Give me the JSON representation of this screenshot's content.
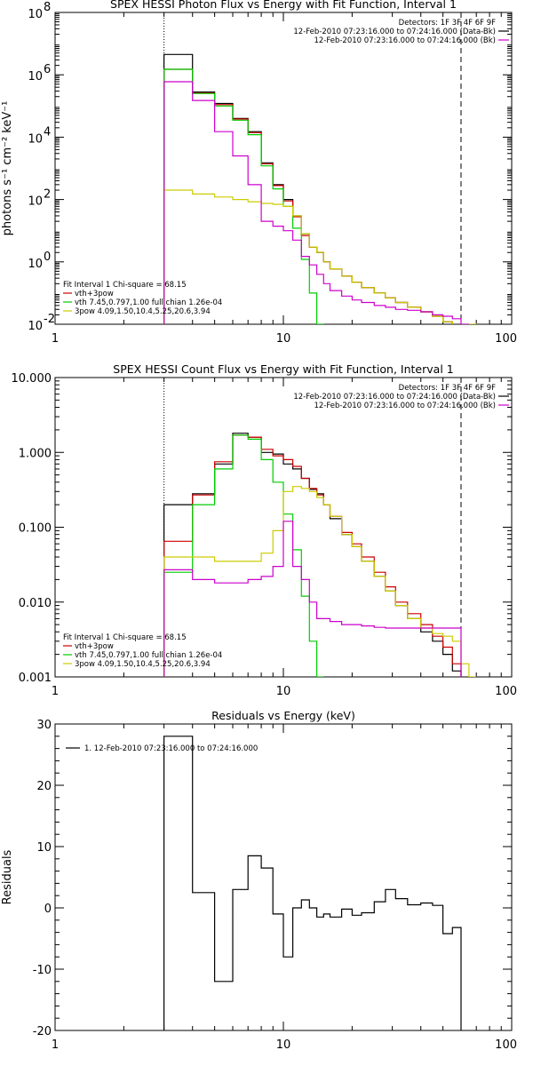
{
  "chart_data": [
    {
      "type": "line",
      "title": "SPEX HESSI Photon Flux vs Energy with Fit Function, Interval 1",
      "xlabel": "",
      "ylabel": "photons s⁻¹ cm⁻² keV⁻¹",
      "xscale": "log",
      "yscale": "log",
      "xlim": [
        1,
        100
      ],
      "ylim": [
        0.01,
        100000000
      ],
      "xticks": [
        {
          "v": 1,
          "label": "1"
        },
        {
          "v": 10,
          "label": "10"
        },
        {
          "v": 100,
          "label": "100"
        }
      ],
      "yticks": [
        {
          "v": 0.01,
          "label": "10",
          "exp": "-2"
        },
        {
          "v": 1,
          "label": "10",
          "exp": "0"
        },
        {
          "v": 100,
          "label": "10",
          "exp": "2"
        },
        {
          "v": 10000,
          "label": "10",
          "exp": "4"
        },
        {
          "v": 1000000,
          "label": "10",
          "exp": "6"
        },
        {
          "v": 100000000,
          "label": "10",
          "exp": "8"
        }
      ],
      "vlines": [
        {
          "x": 3,
          "style": "dotted"
        },
        {
          "x": 60,
          "style": "dashed"
        }
      ],
      "legend_top": [
        "Detectors: 1F 3F 4F 6F 9F",
        "12-Feb-2010 07:23:16.000 to 07:24:16.000 (Data-Bk)",
        "12-Feb-2010 07:23:16.000 to 07:24:16.000 (Bk)"
      ],
      "legend_top_colors": [
        "",
        "#000000",
        "#cc00cc"
      ],
      "legend_bottom": [
        "Fit Interval 1    Chi-square = 68.15",
        "vth+3pow",
        "vth 7.45,0.797,1.00  full chian 1.26e-04",
        "3pow 4.09,1.50,10.4,5.25,20.6,3.94"
      ],
      "legend_bottom_colors": [
        "",
        "#cc0000",
        "#00cc00",
        "#cccc00"
      ],
      "edges": [
        3,
        4,
        5,
        6,
        7,
        8,
        9,
        10,
        11,
        12,
        13,
        14,
        15,
        16,
        18,
        20,
        22,
        25,
        28,
        31,
        35,
        40,
        45,
        50,
        55,
        60,
        65,
        70
      ],
      "series": [
        {
          "color": "#000000",
          "values": [
            4500000,
            280000,
            120000,
            40000,
            15000,
            1500,
            300,
            100,
            30,
            8,
            3,
            2,
            1,
            0.6,
            0.35,
            0.22,
            0.15,
            0.1,
            0.07,
            0.05,
            0.035,
            0.025,
            0.018,
            0.012,
            0.009,
            0.004,
            null
          ]
        },
        {
          "color": "#cc0000",
          "values": [
            1500000,
            260000,
            110000,
            38000,
            14000,
            1400,
            280,
            90,
            28,
            7,
            3,
            2,
            1,
            0.6,
            0.35,
            0.22,
            0.15,
            0.1,
            0.07,
            0.05,
            0.035,
            0.025,
            0.018,
            0.012,
            0.009,
            0.004,
            null
          ]
        },
        {
          "color": "#00cc00",
          "values": [
            1500000,
            250000,
            100000,
            35000,
            12000,
            1200,
            220,
            60,
            12,
            1.2,
            0.1,
            0.01,
            0.001,
            null,
            null,
            null,
            null,
            null,
            null,
            null,
            null,
            null,
            null,
            null,
            null,
            null,
            null
          ]
        },
        {
          "color": "#cccc00",
          "values": [
            200,
            150,
            120,
            100,
            85,
            75,
            70,
            60,
            30,
            8,
            3,
            2,
            1,
            0.6,
            0.35,
            0.22,
            0.15,
            0.1,
            0.07,
            0.05,
            0.035,
            0.025,
            0.018,
            0.012,
            0.009,
            0.005,
            0.01
          ]
        },
        {
          "color": "#cc00cc",
          "values": [
            600000,
            150000,
            15000,
            2500,
            300,
            20,
            14,
            10,
            5,
            1.5,
            0.8,
            0.4,
            0.2,
            0.12,
            0.08,
            0.06,
            0.05,
            0.04,
            0.035,
            0.03,
            0.028,
            0.025,
            0.02,
            0.018,
            0.015,
            0.01,
            null
          ]
        }
      ]
    },
    {
      "type": "line",
      "title": "SPEX HESSI Count Flux vs Energy with Fit Function, Interval 1",
      "xlabel": "",
      "ylabel": "",
      "xscale": "log",
      "yscale": "log",
      "xlim": [
        1,
        100
      ],
      "ylim": [
        0.001,
        10
      ],
      "xticks": [
        {
          "v": 1,
          "label": "1"
        },
        {
          "v": 10,
          "label": "10"
        },
        {
          "v": 100,
          "label": "100"
        }
      ],
      "yticks": [
        {
          "v": 0.001,
          "label": "0.001"
        },
        {
          "v": 0.01,
          "label": "0.010"
        },
        {
          "v": 0.1,
          "label": "0.100"
        },
        {
          "v": 1,
          "label": "1.000"
        },
        {
          "v": 10,
          "label": "10.000"
        }
      ],
      "vlines": [
        {
          "x": 3,
          "style": "dotted"
        },
        {
          "x": 60,
          "style": "dashed"
        }
      ],
      "legend_top": [
        "Detectors: 1F 3F 4F 6F 9F",
        "12-Feb-2010 07:23:16.000 to 07:24:16.000 (Data-Bk)",
        "12-Feb-2010 07:23:16.000 to 07:24:16.000 (Bk)"
      ],
      "legend_top_colors": [
        "",
        "#000000",
        "#cc00cc"
      ],
      "legend_bottom": [
        "Fit Interval 1    Chi-square = 68.15",
        "vth+3pow",
        "vth 7.45,0.797,1.00  full chian 1.26e-04",
        "3pow 4.09,1.50,10.4,5.25,20.6,3.94"
      ],
      "legend_bottom_colors": [
        "",
        "#cc0000",
        "#00cc00",
        "#cccc00"
      ],
      "edges": [
        3,
        4,
        5,
        6,
        7,
        8,
        9,
        10,
        11,
        12,
        13,
        14,
        15,
        16,
        18,
        20,
        22,
        25,
        28,
        31,
        35,
        40,
        45,
        50,
        55,
        60,
        65,
        70,
        80
      ],
      "series": [
        {
          "color": "#000000",
          "values": [
            0.2,
            0.28,
            0.7,
            1.8,
            1.6,
            1.0,
            0.95,
            0.7,
            0.6,
            0.45,
            0.32,
            0.28,
            0.2,
            0.13,
            0.08,
            0.055,
            0.035,
            0.022,
            0.014,
            0.009,
            0.006,
            0.004,
            0.003,
            0.002,
            0.0012,
            null,
            null,
            null
          ]
        },
        {
          "color": "#cc0000",
          "values": [
            0.065,
            0.27,
            0.75,
            1.7,
            1.6,
            1.1,
            0.9,
            0.8,
            0.65,
            0.45,
            0.33,
            0.27,
            0.2,
            0.14,
            0.085,
            0.06,
            0.04,
            0.025,
            0.016,
            0.01,
            0.007,
            0.005,
            0.0035,
            0.0025,
            0.0015,
            null,
            null,
            null
          ]
        },
        {
          "color": "#00cc00",
          "values": [
            0.025,
            0.2,
            0.6,
            1.7,
            1.5,
            0.8,
            0.4,
            0.15,
            0.05,
            0.012,
            0.003,
            0.001,
            null,
            null,
            null,
            null,
            null,
            null,
            null,
            null,
            null,
            null,
            null,
            null,
            null,
            null,
            null,
            null
          ]
        },
        {
          "color": "#cccc00",
          "values": [
            0.04,
            0.04,
            0.035,
            0.035,
            0.035,
            0.045,
            0.09,
            0.3,
            0.35,
            0.33,
            0.3,
            0.25,
            0.2,
            0.14,
            0.08,
            0.055,
            0.035,
            0.022,
            0.014,
            0.009,
            0.006,
            0.0045,
            0.0038,
            0.0035,
            0.003,
            0.0015,
            0.001,
            null
          ]
        },
        {
          "color": "#cc00cc",
          "values": [
            0.027,
            0.02,
            0.018,
            0.018,
            0.02,
            0.022,
            0.03,
            0.12,
            0.03,
            0.02,
            0.01,
            0.006,
            0.006,
            0.0055,
            0.005,
            0.005,
            0.0048,
            0.0046,
            0.0045,
            0.0045,
            0.0045,
            0.0045,
            0.0045,
            0.0045,
            0.0045,
            null,
            null,
            null
          ]
        }
      ]
    },
    {
      "type": "line",
      "title": "Residuals vs Energy (keV)",
      "xlabel": "",
      "ylabel": "Residuals",
      "xscale": "log",
      "yscale": "linear",
      "xlim": [
        1,
        100
      ],
      "ylim": [
        -20,
        30
      ],
      "xticks": [
        {
          "v": 1,
          "label": "1"
        },
        {
          "v": 10,
          "label": "10"
        },
        {
          "v": 100,
          "label": "100"
        }
      ],
      "yticks": [
        {
          "v": -20,
          "label": "-20"
        },
        {
          "v": -10,
          "label": "-10"
        },
        {
          "v": 0,
          "label": "0"
        },
        {
          "v": 10,
          "label": "10"
        },
        {
          "v": 20,
          "label": "20"
        },
        {
          "v": 30,
          "label": "30"
        }
      ],
      "vlines": [],
      "legend_top": [
        "1. 12-Feb-2010 07:23:16.000 to 07:24:16.000"
      ],
      "legend_top_colors": [
        "#000000"
      ],
      "legend_bottom": [],
      "legend_bottom_colors": [],
      "edges": [
        3,
        4,
        5,
        6,
        7,
        8,
        9,
        10,
        11,
        12,
        13,
        14,
        15,
        16,
        18,
        20,
        22,
        25,
        28,
        31,
        35,
        40,
        45,
        50,
        55,
        60
      ],
      "series": [
        {
          "color": "#000000",
          "values": [
            28,
            2.5,
            -12,
            3,
            8.5,
            6.5,
            -1,
            -8,
            0,
            1.3,
            0,
            -1.5,
            -1,
            -1.5,
            -0.2,
            -1.2,
            -0.8,
            1,
            3,
            1.5,
            0.5,
            0.8,
            0.4,
            -4.2,
            -3.2
          ]
        }
      ]
    }
  ]
}
